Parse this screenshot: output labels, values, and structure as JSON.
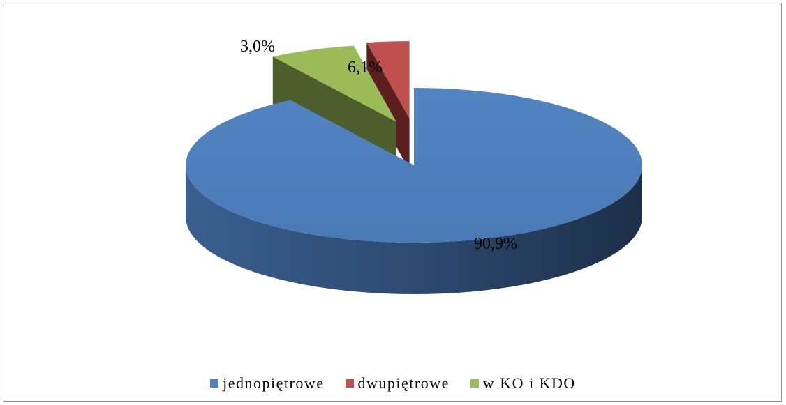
{
  "chart_data": {
    "type": "pie",
    "title": "",
    "categories": [
      "jednopiętrowe",
      "dwupiętrowe",
      "w KO i KDO"
    ],
    "values": [
      90.9,
      3.0,
      6.1
    ],
    "value_labels": [
      "90,9%",
      "3,0%",
      "6,1%"
    ],
    "colors": [
      "#4f81bd",
      "#c0504d",
      "#9bbb59"
    ],
    "exploded": true,
    "three_d": true,
    "legend_position": "bottom"
  }
}
